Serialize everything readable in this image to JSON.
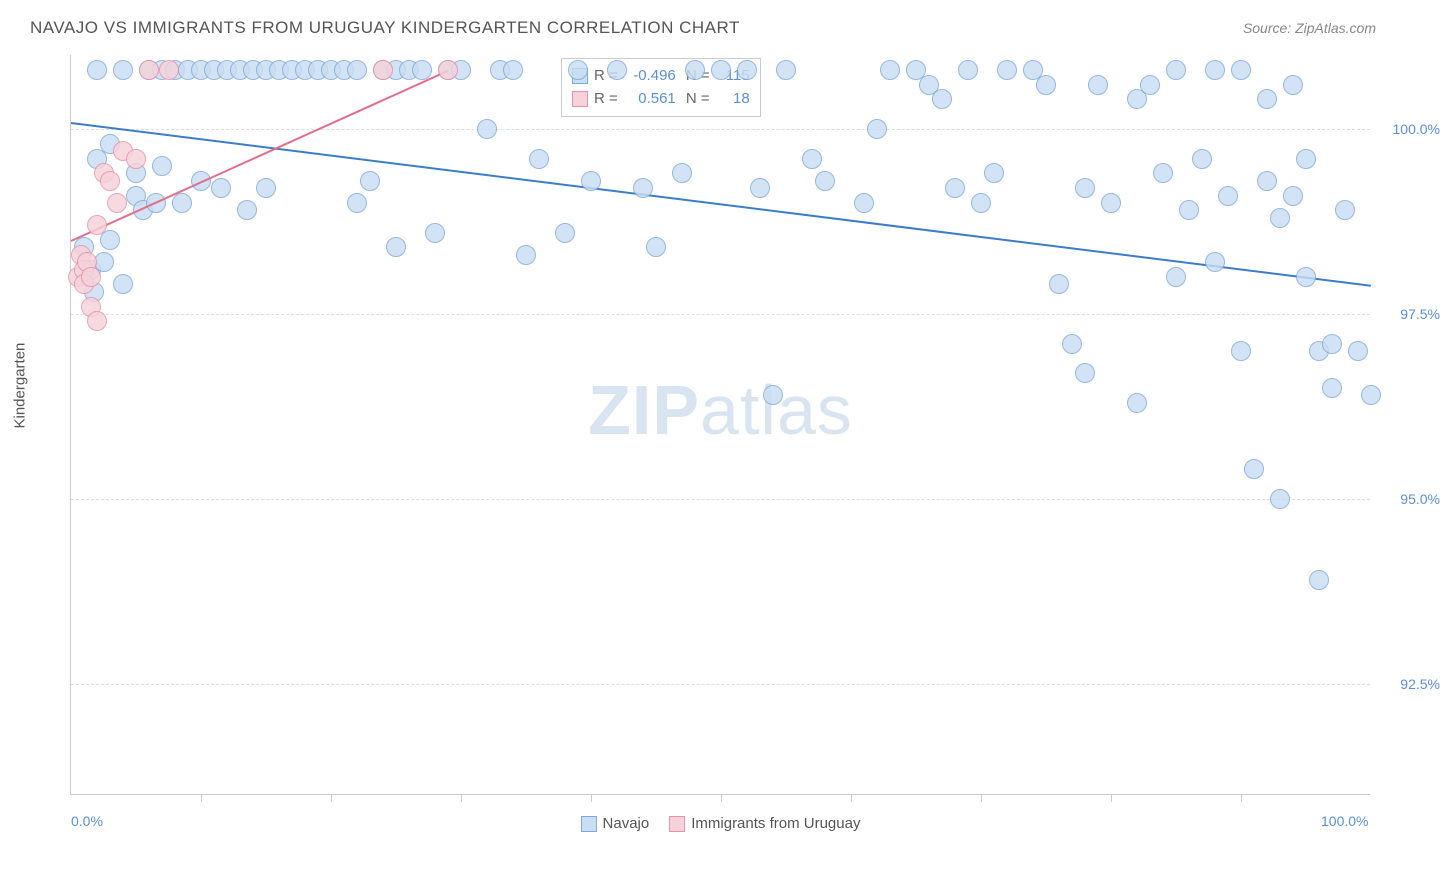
{
  "title": "NAVAJO VS IMMIGRANTS FROM URUGUAY KINDERGARTEN CORRELATION CHART",
  "source": "Source: ZipAtlas.com",
  "yaxis_title": "Kindergarten",
  "watermark_bold": "ZIP",
  "watermark_rest": "atlas",
  "chart": {
    "xlim": [
      0,
      100
    ],
    "ylim": [
      91.0,
      101.0
    ],
    "x_ticks_labeled": [
      {
        "val": 0,
        "label": "0.0%"
      },
      {
        "val": 100,
        "label": "100.0%"
      }
    ],
    "x_ticks_minor": [
      10,
      20,
      30,
      40,
      50,
      60,
      70,
      80,
      90
    ],
    "y_gridlines": [
      {
        "val": 100.0,
        "label": "100.0%"
      },
      {
        "val": 97.5,
        "label": "97.5%"
      },
      {
        "val": 95.0,
        "label": "95.0%"
      },
      {
        "val": 92.5,
        "label": "92.5%"
      }
    ],
    "point_radius": 10,
    "point_stroke_width": 1.2,
    "series": [
      {
        "name": "Navajo",
        "fill": "#c9ddf3",
        "stroke": "#7fa9d8",
        "R": "-0.496",
        "N": "115",
        "trend": {
          "x1": 0,
          "y1": 100.1,
          "x2": 100,
          "y2": 97.9,
          "color": "#3d7cc9",
          "width": 2
        },
        "points": [
          [
            1,
            98.4
          ],
          [
            1.5,
            98.1
          ],
          [
            1.8,
            97.8
          ],
          [
            2,
            99.6
          ],
          [
            2,
            100.8
          ],
          [
            2.5,
            98.2
          ],
          [
            3,
            98.5
          ],
          [
            3,
            99.8
          ],
          [
            4,
            97.9
          ],
          [
            4,
            100.8
          ],
          [
            5,
            99.4
          ],
          [
            5,
            99.1
          ],
          [
            5.5,
            98.9
          ],
          [
            6,
            100.8
          ],
          [
            6.5,
            99.0
          ],
          [
            7,
            99.5
          ],
          [
            7,
            100.8
          ],
          [
            8,
            100.8
          ],
          [
            8.5,
            99.0
          ],
          [
            9,
            100.8
          ],
          [
            10,
            99.3
          ],
          [
            10,
            100.8
          ],
          [
            11,
            100.8
          ],
          [
            11.5,
            99.2
          ],
          [
            12,
            100.8
          ],
          [
            13,
            100.8
          ],
          [
            13.5,
            98.9
          ],
          [
            14,
            100.8
          ],
          [
            15,
            99.2
          ],
          [
            15,
            100.8
          ],
          [
            16,
            100.8
          ],
          [
            17,
            100.8
          ],
          [
            18,
            100.8
          ],
          [
            19,
            100.8
          ],
          [
            20,
            100.8
          ],
          [
            21,
            100.8
          ],
          [
            22,
            99.0
          ],
          [
            22,
            100.8
          ],
          [
            23,
            99.3
          ],
          [
            24,
            100.8
          ],
          [
            25,
            98.4
          ],
          [
            25,
            100.8
          ],
          [
            26,
            100.8
          ],
          [
            27,
            100.8
          ],
          [
            28,
            98.6
          ],
          [
            29,
            100.8
          ],
          [
            30,
            100.8
          ],
          [
            32,
            100.0
          ],
          [
            33,
            100.8
          ],
          [
            34,
            100.8
          ],
          [
            35,
            98.3
          ],
          [
            36,
            99.6
          ],
          [
            38,
            98.6
          ],
          [
            39,
            100.8
          ],
          [
            40,
            99.3
          ],
          [
            42,
            100.8
          ],
          [
            44,
            99.2
          ],
          [
            45,
            98.4
          ],
          [
            47,
            99.4
          ],
          [
            48,
            100.8
          ],
          [
            50,
            100.8
          ],
          [
            52,
            100.8
          ],
          [
            53,
            99.2
          ],
          [
            54,
            96.4
          ],
          [
            55,
            100.8
          ],
          [
            57,
            99.6
          ],
          [
            58,
            99.3
          ],
          [
            61,
            99.0
          ],
          [
            62,
            100.0
          ],
          [
            63,
            100.8
          ],
          [
            65,
            100.8
          ],
          [
            66,
            100.6
          ],
          [
            67,
            100.4
          ],
          [
            68,
            99.2
          ],
          [
            69,
            100.8
          ],
          [
            70,
            99.0
          ],
          [
            71,
            99.4
          ],
          [
            72,
            100.8
          ],
          [
            74,
            100.8
          ],
          [
            75,
            100.6
          ],
          [
            76,
            97.9
          ],
          [
            77,
            97.1
          ],
          [
            78,
            99.2
          ],
          [
            78,
            96.7
          ],
          [
            79,
            100.6
          ],
          [
            80,
            99.0
          ],
          [
            82,
            96.3
          ],
          [
            82,
            100.4
          ],
          [
            83,
            100.6
          ],
          [
            84,
            99.4
          ],
          [
            85,
            100.8
          ],
          [
            85,
            98.0
          ],
          [
            86,
            98.9
          ],
          [
            87,
            99.6
          ],
          [
            88,
            100.8
          ],
          [
            88,
            98.2
          ],
          [
            89,
            99.1
          ],
          [
            90,
            100.8
          ],
          [
            90,
            97.0
          ],
          [
            91,
            95.4
          ],
          [
            92,
            100.4
          ],
          [
            92,
            99.3
          ],
          [
            93,
            98.8
          ],
          [
            93,
            95.0
          ],
          [
            94,
            100.6
          ],
          [
            94,
            99.1
          ],
          [
            95,
            99.6
          ],
          [
            95,
            98.0
          ],
          [
            96,
            97.0
          ],
          [
            96,
            93.9
          ],
          [
            97,
            97.1
          ],
          [
            97,
            96.5
          ],
          [
            98,
            98.9
          ],
          [
            99,
            97.0
          ],
          [
            100,
            96.4
          ]
        ]
      },
      {
        "name": "Immigrants from Uruguay",
        "fill": "#f6d2da",
        "stroke": "#e693a9",
        "R": "0.561",
        "N": "18",
        "trend": {
          "x1": 0,
          "y1": 98.5,
          "x2": 29,
          "y2": 100.8,
          "color": "#e16f8c",
          "width": 2
        },
        "points": [
          [
            0.5,
            98.0
          ],
          [
            0.8,
            98.3
          ],
          [
            1,
            98.1
          ],
          [
            1,
            97.9
          ],
          [
            1.2,
            98.2
          ],
          [
            1.5,
            98.0
          ],
          [
            1.5,
            97.6
          ],
          [
            2,
            98.7
          ],
          [
            2,
            97.4
          ],
          [
            2.5,
            99.4
          ],
          [
            3,
            99.3
          ],
          [
            3.5,
            99.0
          ],
          [
            4,
            99.7
          ],
          [
            5,
            99.6
          ],
          [
            6,
            100.8
          ],
          [
            7.5,
            100.8
          ],
          [
            24,
            100.8
          ],
          [
            29,
            100.8
          ]
        ]
      }
    ]
  },
  "bottom_legend": [
    {
      "label": "Navajo",
      "fill": "#c9ddf3",
      "stroke": "#7fa9d8"
    },
    {
      "label": "Immigrants from Uruguay",
      "fill": "#f6d2da",
      "stroke": "#e693a9"
    }
  ]
}
